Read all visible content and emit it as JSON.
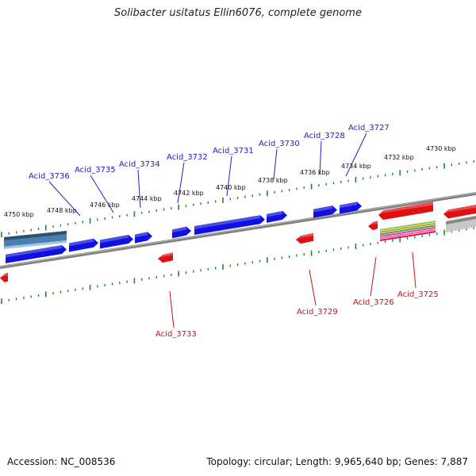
{
  "title": "Solibacter usitatus Ellin6076, complete genome",
  "footer": {
    "accession": "Accession: NC_008536",
    "summary": "Topology: circular; Length: 9,965,640 bp; Genes: 7,887"
  },
  "colors": {
    "forward_gene": "#1010e0",
    "reverse_gene": "#e01010",
    "forward_label": "#2020c0",
    "reverse_label": "#cc1010",
    "backbone": "#888888",
    "ruler": "#228822",
    "rna": "#4a7fb0"
  },
  "ruler_labels": [
    "4730 kbp",
    "4732 kbp",
    "4734 kbp",
    "4736 kbp",
    "4738 kbp",
    "4740 kbp",
    "4742 kbp",
    "4744 kbp",
    "4746 kbp",
    "4748 kbp",
    "4750 kbp"
  ],
  "forward_labels": [
    "Acid_3727",
    "Acid_3728",
    "Acid_3730",
    "Acid_3731",
    "Acid_3732",
    "Acid_3734",
    "Acid_3735",
    "Acid_3736"
  ],
  "reverse_labels": [
    "Acid_3725",
    "Acid_3726",
    "Acid_3729",
    "Acid_3733"
  ]
}
